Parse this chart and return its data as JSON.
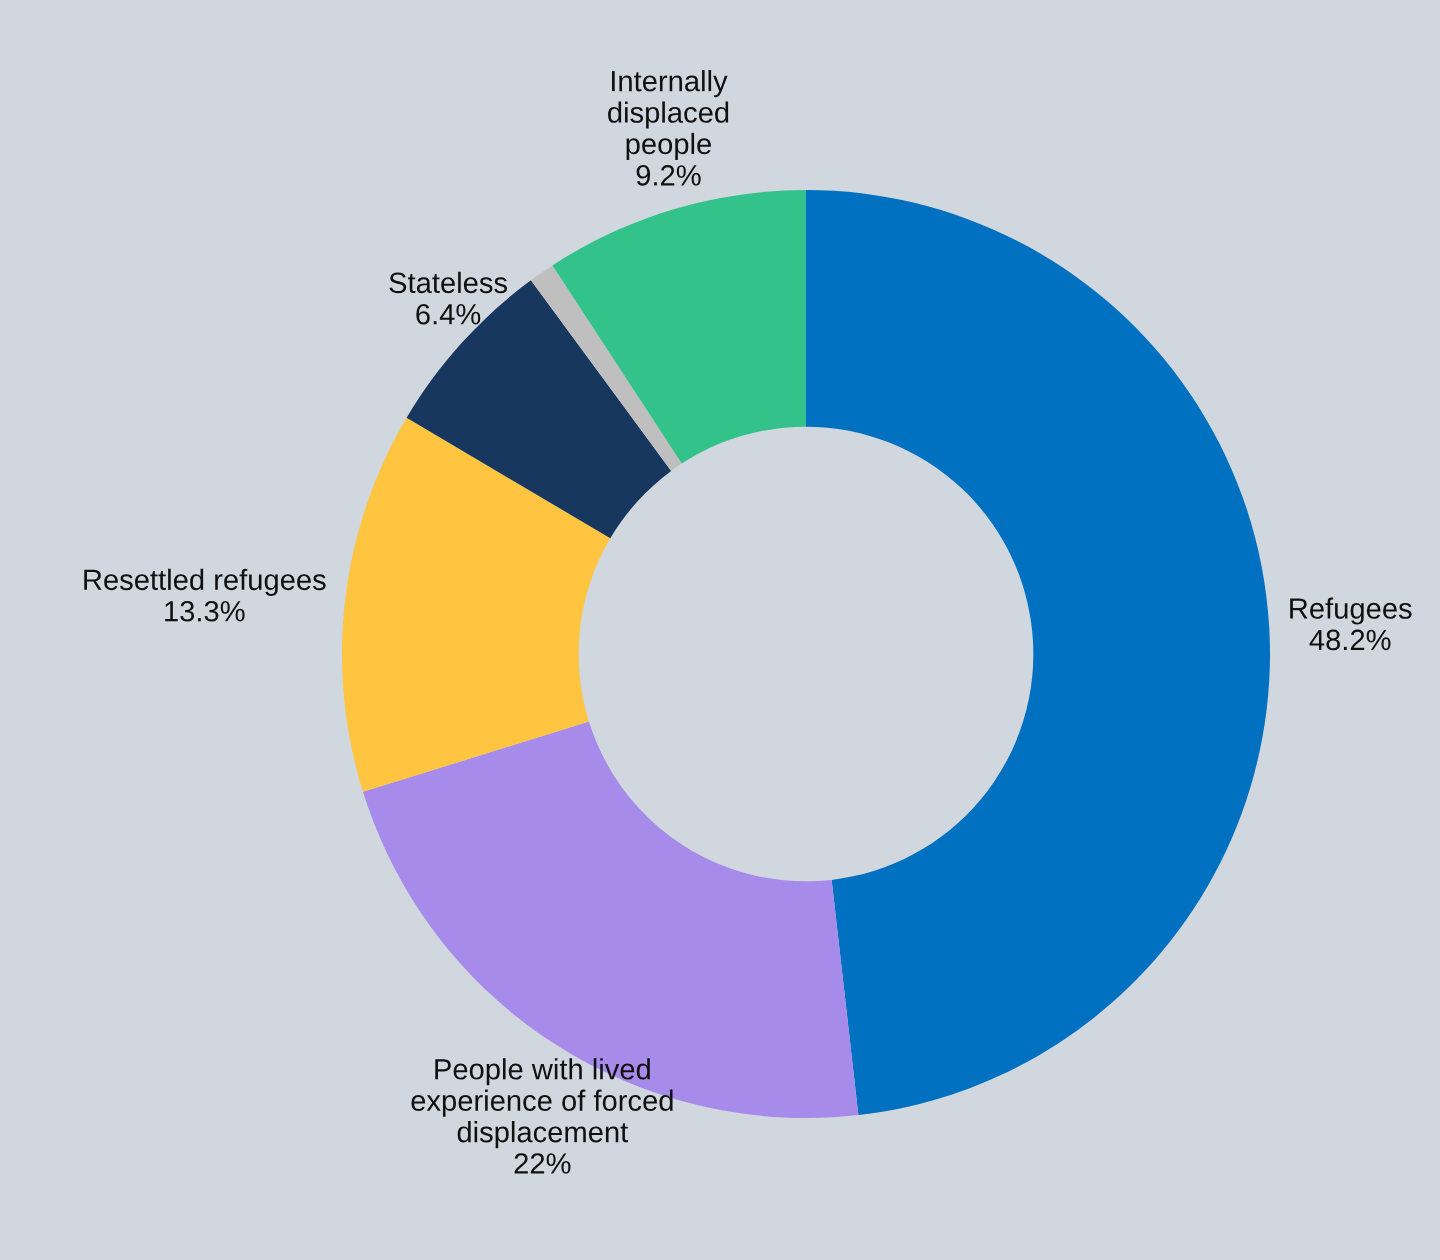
{
  "chart_data": {
    "type": "donut",
    "categories": [
      "Refugees\n48.2%",
      "People with lived\nexperience of forced\ndisplacement\n22%",
      "Resettled refugees\n13.3%",
      "Stateless\n6.4%",
      null,
      "Internally\ndisplaced\npeople\n9.2%"
    ],
    "values": [
      48.2,
      22,
      13.3,
      6.4,
      0.9,
      9.2
    ],
    "colors": [
      "#0070c0",
      "#a78bea",
      "#ffc440",
      "#17375e",
      "#bfbfbf",
      "#33c38a"
    ]
  }
}
